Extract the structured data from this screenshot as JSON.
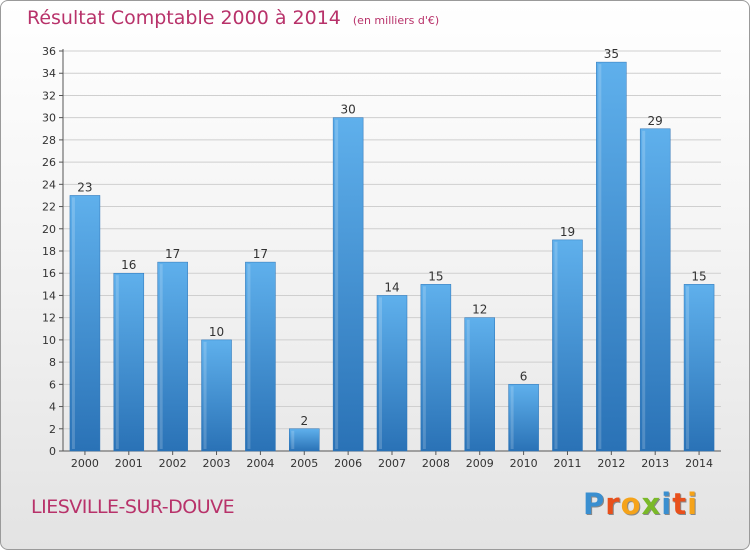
{
  "header": {
    "title": "Résultat Comptable 2000 à 2014",
    "subtitle": "(en milliers d'€)"
  },
  "footer": {
    "commune": "LIESVILLE-SUR-DOUVE",
    "logo_text": "Proxiti",
    "logo_letters": [
      {
        "char": "P",
        "color": "#3a8fd0"
      },
      {
        "char": "r",
        "color": "#e8501c"
      },
      {
        "char": "o",
        "color": "#f5a31a"
      },
      {
        "char": "x",
        "color": "#7ab929"
      },
      {
        "char": "i",
        "color": "#3a8fd0"
      },
      {
        "char": "t",
        "color": "#e8501c"
      },
      {
        "char": "i",
        "color": "#f5a31a"
      }
    ]
  },
  "chart_data": {
    "type": "bar",
    "title": "Résultat Comptable 2000 à 2014",
    "subtitle": "(en milliers d'€)",
    "categories": [
      "2000",
      "2001",
      "2002",
      "2003",
      "2004",
      "2005",
      "2006",
      "2007",
      "2008",
      "2009",
      "2010",
      "2011",
      "2012",
      "2013",
      "2014"
    ],
    "values": [
      23,
      16,
      17,
      10,
      17,
      2,
      30,
      14,
      15,
      12,
      6,
      19,
      35,
      29,
      15
    ],
    "ylim": [
      0,
      36
    ],
    "yticks": [
      0,
      2,
      4,
      6,
      8,
      10,
      12,
      14,
      16,
      18,
      20,
      22,
      24,
      26,
      28,
      30,
      32,
      34,
      36
    ],
    "grid": true,
    "bar_color": "#3b8fd3",
    "bar_color_light": "#5fb0ec",
    "bar_color_dark": "#2a72b6"
  }
}
